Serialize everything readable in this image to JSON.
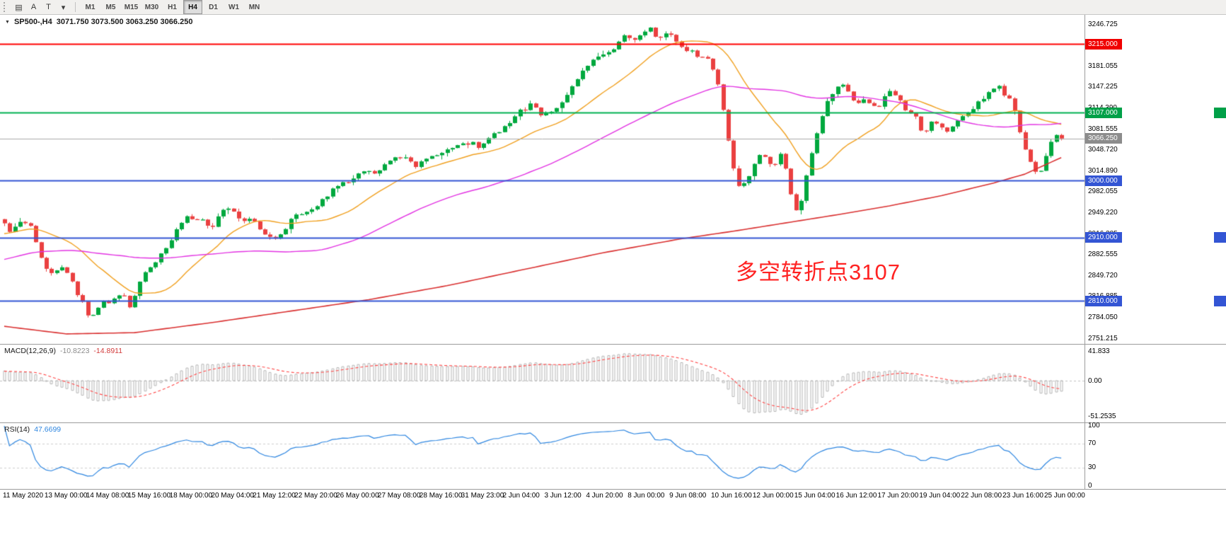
{
  "toolbar": {
    "tools": [
      {
        "name": "chart-window-icon",
        "glyph": "▤"
      },
      {
        "name": "cursor-tool-icon",
        "glyph": "A"
      },
      {
        "name": "text-tool-icon",
        "glyph": "T"
      },
      {
        "name": "shapes-dropdown-icon",
        "glyph": "▾"
      }
    ],
    "timeframes": [
      "M1",
      "M5",
      "M15",
      "M30",
      "H1",
      "H4",
      "D1",
      "W1",
      "MN"
    ],
    "active_timeframe": "H4"
  },
  "chart_data": {
    "type": "candlestick",
    "symbol": "SP500-",
    "timeframe": "H4",
    "title": "SP500-,H4",
    "title_marker": "▼",
    "ohlc_display": "3071.750 3073.500 3063.250 3066.250",
    "last_candle": {
      "open": 3071.75,
      "high": 3073.5,
      "low": 3063.25,
      "close": 3066.25
    },
    "bar_count": 204,
    "y_axis": {
      "max": 3246.725,
      "min": 2751.215,
      "ticks": [
        "3246.725",
        "3213.890",
        "3181.055",
        "3147.225",
        "3114.390",
        "3081.555",
        "3048.720",
        "3014.890",
        "2982.055",
        "2949.220",
        "2916.385",
        "2882.555",
        "2849.720",
        "2816.885",
        "2784.050",
        "2751.215"
      ]
    },
    "price_lines": [
      {
        "price": 3215.0,
        "label": "3215.000",
        "color": "#ff0000",
        "badge": "#f00000",
        "width": 2
      },
      {
        "price": 3107.0,
        "label": "3107.000",
        "color": "#00b050",
        "badge": "#00a048",
        "width": 2,
        "edge_mark": true
      },
      {
        "price": 3066.25,
        "label": "3066.250",
        "color": "#aaaaaa",
        "badge": "#8c8c8c",
        "width": 1
      },
      {
        "price": 3000.0,
        "label": "3000.000",
        "color": "#3355d4",
        "badge": "#3355d4",
        "width": 2
      },
      {
        "price": 2910.0,
        "label": "2910.000",
        "color": "#3355d4",
        "badge": "#3355d4",
        "width": 2,
        "edge_mark": true
      },
      {
        "price": 2810.0,
        "label": "2810.000",
        "color": "#3355d4",
        "badge": "#3355d4",
        "width": 2,
        "edge_mark": true
      }
    ],
    "annotation": {
      "text": "多空转折点3107",
      "color": "#ff2222"
    },
    "x_axis": {
      "labels": [
        "11 May 2020",
        "13 May 00:00",
        "14 May 08:00",
        "15 May 16:00",
        "18 May 00:00",
        "20 May 04:00",
        "21 May 12:00",
        "22 May 20:00",
        "26 May 00:00",
        "27 May 08:00",
        "28 May 16:00",
        "31 May 23:00",
        "2 Jun 04:00",
        "3 Jun 12:00",
        "4 Jun 20:00",
        "8 Jun 00:00",
        "9 Jun 08:00",
        "10 Jun 16:00",
        "12 Jun 00:00",
        "15 Jun 04:00",
        "16 Jun 12:00",
        "17 Jun 20:00",
        "19 Jun 04:00",
        "22 Jun 08:00",
        "23 Jun 16:00",
        "25 Jun 00:00"
      ]
    },
    "price_path": [
      [
        0,
        2935
      ],
      [
        2,
        2916
      ],
      [
        4,
        2942
      ],
      [
        6,
        2922
      ],
      [
        8,
        2868
      ],
      [
        10,
        2852
      ],
      [
        12,
        2866
      ],
      [
        14,
        2832
      ],
      [
        16,
        2800
      ],
      [
        17,
        2776
      ],
      [
        18,
        2792
      ],
      [
        20,
        2816
      ],
      [
        21,
        2796
      ],
      [
        22,
        2826
      ],
      [
        24,
        2812
      ],
      [
        25,
        2792
      ],
      [
        26,
        2836
      ],
      [
        28,
        2862
      ],
      [
        30,
        2876
      ],
      [
        32,
        2896
      ],
      [
        34,
        2928
      ],
      [
        36,
        2950
      ],
      [
        37,
        2932
      ],
      [
        38,
        2948
      ],
      [
        40,
        2922
      ],
      [
        42,
        2950
      ],
      [
        44,
        2958
      ],
      [
        46,
        2936
      ],
      [
        48,
        2942
      ],
      [
        50,
        2916
      ],
      [
        52,
        2906
      ],
      [
        54,
        2918
      ],
      [
        56,
        2942
      ],
      [
        58,
        2952
      ],
      [
        60,
        2956
      ],
      [
        62,
        2972
      ],
      [
        64,
        2988
      ],
      [
        66,
        2998
      ],
      [
        68,
        3006
      ],
      [
        70,
        3018
      ],
      [
        72,
        3012
      ],
      [
        74,
        3028
      ],
      [
        76,
        3040
      ],
      [
        78,
        3032
      ],
      [
        80,
        3022
      ],
      [
        82,
        3038
      ],
      [
        84,
        3044
      ],
      [
        86,
        3050
      ],
      [
        88,
        3058
      ],
      [
        90,
        3060
      ],
      [
        92,
        3052
      ],
      [
        94,
        3072
      ],
      [
        96,
        3078
      ],
      [
        98,
        3098
      ],
      [
        100,
        3112
      ],
      [
        102,
        3120
      ],
      [
        104,
        3102
      ],
      [
        106,
        3110
      ],
      [
        108,
        3128
      ],
      [
        110,
        3152
      ],
      [
        112,
        3178
      ],
      [
        114,
        3192
      ],
      [
        116,
        3198
      ],
      [
        118,
        3212
      ],
      [
        120,
        3230
      ],
      [
        122,
        3222
      ],
      [
        124,
        3242
      ],
      [
        125,
        3235
      ],
      [
        126,
        3226
      ],
      [
        128,
        3232
      ],
      [
        130,
        3214
      ],
      [
        132,
        3206
      ],
      [
        134,
        3196
      ],
      [
        136,
        3188
      ],
      [
        137,
        3170
      ],
      [
        138,
        3140
      ],
      [
        139,
        3090
      ],
      [
        140,
        3040
      ],
      [
        141,
        3005
      ],
      [
        142,
        2984
      ],
      [
        143,
        2999
      ],
      [
        144,
        3012
      ],
      [
        145,
        3035
      ],
      [
        146,
        3048
      ],
      [
        147,
        3030
      ],
      [
        148,
        3020
      ],
      [
        149,
        3035
      ],
      [
        150,
        3041
      ],
      [
        151,
        3000
      ],
      [
        152,
        2965
      ],
      [
        153,
        2942
      ],
      [
        154,
        2985
      ],
      [
        155,
        3022
      ],
      [
        156,
        3055
      ],
      [
        157,
        3088
      ],
      [
        158,
        3110
      ],
      [
        159,
        3130
      ],
      [
        160,
        3140
      ],
      [
        161,
        3155
      ],
      [
        162,
        3148
      ],
      [
        163,
        3132
      ],
      [
        164,
        3120
      ],
      [
        166,
        3128
      ],
      [
        168,
        3113
      ],
      [
        170,
        3135
      ],
      [
        171,
        3148
      ],
      [
        172,
        3130
      ],
      [
        174,
        3108
      ],
      [
        176,
        3100
      ],
      [
        177,
        3068
      ],
      [
        178,
        3082
      ],
      [
        179,
        3095
      ],
      [
        180,
        3090
      ],
      [
        182,
        3078
      ],
      [
        184,
        3098
      ],
      [
        186,
        3112
      ],
      [
        188,
        3125
      ],
      [
        190,
        3140
      ],
      [
        191,
        3152
      ],
      [
        192,
        3142
      ],
      [
        193,
        3130
      ],
      [
        194,
        3128
      ],
      [
        195,
        3095
      ],
      [
        196,
        3068
      ],
      [
        197,
        3035
      ],
      [
        198,
        3022
      ],
      [
        199,
        3005
      ],
      [
        200,
        3018
      ],
      [
        201,
        3048
      ],
      [
        202,
        3068
      ],
      [
        203,
        3066.25
      ]
    ],
    "red_ma_path": [
      [
        0,
        2770
      ],
      [
        12,
        2758
      ],
      [
        25,
        2760
      ],
      [
        40,
        2776
      ],
      [
        55,
        2794
      ],
      [
        70,
        2812
      ],
      [
        85,
        2834
      ],
      [
        100,
        2860
      ],
      [
        115,
        2886
      ],
      [
        130,
        2908
      ],
      [
        140,
        2920
      ],
      [
        150,
        2933
      ],
      [
        160,
        2946
      ],
      [
        170,
        2960
      ],
      [
        180,
        2976
      ],
      [
        190,
        2996
      ],
      [
        196,
        3010
      ],
      [
        200,
        3025
      ],
      [
        203,
        3036
      ]
    ],
    "moving_averages": [
      {
        "name": "fast-ma",
        "period": 18,
        "color": "#f0a020"
      },
      {
        "name": "mid-ma",
        "period": 55,
        "color": "#e233e2"
      },
      {
        "name": "slow-ma",
        "color": "#d93030"
      }
    ],
    "colors": {
      "up": "#00a83e",
      "down": "#ea4040",
      "background": "#ffffff"
    },
    "indicators": {
      "macd": {
        "label": "MACD(12,26,9)",
        "value_main": "-10.8223",
        "value_signal": "-14.8911",
        "ticks": [
          "41.833",
          "0.00",
          "-51.2535"
        ],
        "range": {
          "max": 41.833,
          "min": -51.2535
        },
        "hist_color": "#b5b5b5",
        "signal_color": "#ff4444"
      },
      "rsi": {
        "label": "RSI(14)",
        "value": "47.6699",
        "period": 14,
        "ticks": [
          {
            "v": 100,
            "label": "100"
          },
          {
            "v": 70,
            "label": "70"
          },
          {
            "v": 30,
            "label": "30"
          },
          {
            "v": 0,
            "label": "0"
          }
        ],
        "levels": [
          70,
          30
        ],
        "color": "#2e86e0",
        "level_color": "#cccccc"
      }
    }
  }
}
